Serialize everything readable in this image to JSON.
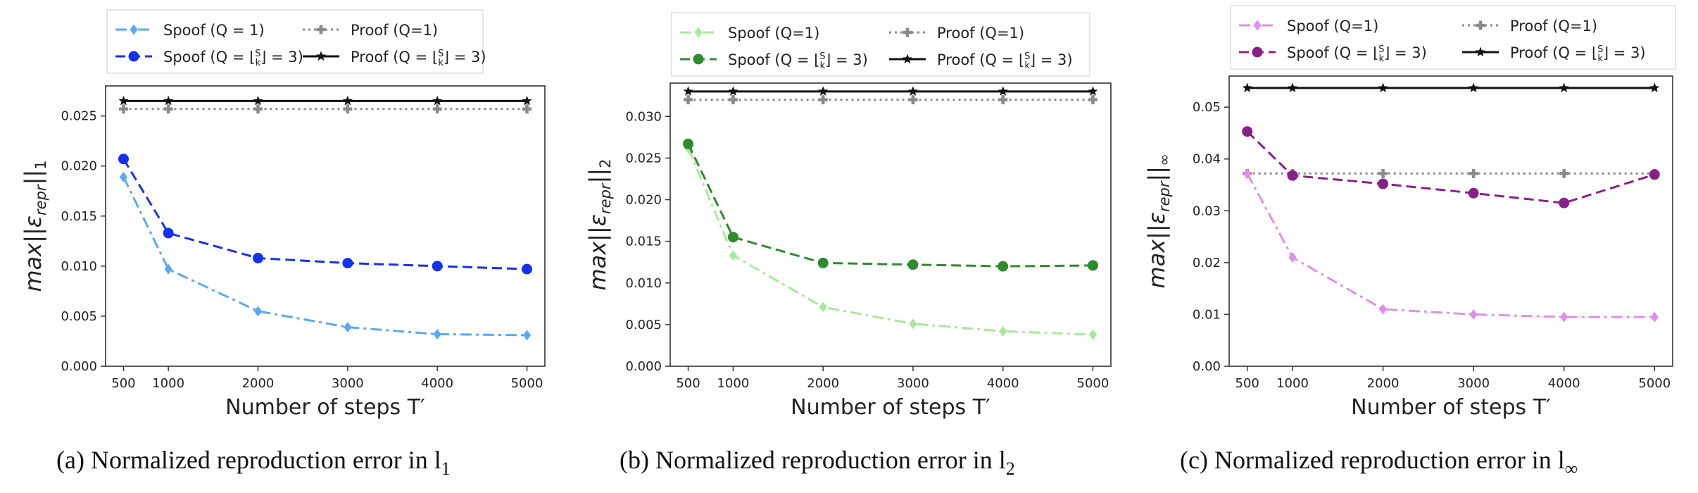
{
  "chart_data": [
    {
      "type": "line",
      "caption": "(a) Normalized reproduction error in l",
      "caption_sub": "1",
      "xlabel": "Number of steps T′",
      "ylabel_main": "max||ε",
      "ylabel_sub": "repr",
      "ylabel_tail": "||",
      "ylabel_idx": "1",
      "x": [
        500,
        1000,
        2000,
        3000,
        4000,
        5000
      ],
      "xticks": [
        "500",
        "1000",
        "2000",
        "3000",
        "4000",
        "5000"
      ],
      "ylim": [
        0,
        0.028
      ],
      "yticks": [
        0.0,
        0.005,
        0.01,
        0.015,
        0.02,
        0.025
      ],
      "ytick_labels": [
        "0.000",
        "0.005",
        "0.010",
        "0.015",
        "0.020",
        "0.025"
      ],
      "legend_position": "top (outside plot, 2 columns)",
      "series": [
        {
          "name": "Spoof (Q = 1)",
          "color": "#5aa9f0",
          "style": "dashdot",
          "marker": "diamond",
          "values": [
            0.0189,
            0.0097,
            0.0055,
            0.0039,
            0.0032,
            0.0031
          ]
        },
        {
          "name": "Spoof (Q = ⌊S/k⌋ = 3)",
          "color": "#1531f0",
          "style": "dashed",
          "marker": "circle",
          "values": [
            0.0207,
            0.0133,
            0.0108,
            0.0103,
            0.01,
            0.0097
          ]
        },
        {
          "name": "Proof (Q=1)",
          "color": "#8a8a8a",
          "style": "dotted",
          "marker": "plus",
          "values": [
            0.0257,
            0.0257,
            0.0257,
            0.0257,
            0.0257,
            0.0257
          ]
        },
        {
          "name": "Proof (Q = ⌊S/k⌋ = 3)",
          "color": "#111111",
          "style": "solid",
          "marker": "star",
          "values": [
            0.0265,
            0.0265,
            0.0265,
            0.0265,
            0.0265,
            0.0265
          ]
        }
      ]
    },
    {
      "type": "line",
      "caption": "(b) Normalized reproduction error in l",
      "caption_sub": "2",
      "xlabel": "Number of steps T′",
      "ylabel_main": "max||ε",
      "ylabel_sub": "repr",
      "ylabel_tail": "||",
      "ylabel_idx": "2",
      "x": [
        500,
        1000,
        2000,
        3000,
        4000,
        5000
      ],
      "xticks": [
        "500",
        "1000",
        "2000",
        "3000",
        "4000",
        "5000"
      ],
      "ylim": [
        0,
        0.034
      ],
      "yticks": [
        0.0,
        0.005,
        0.01,
        0.015,
        0.02,
        0.025,
        0.03
      ],
      "ytick_labels": [
        "0.000",
        "0.005",
        "0.010",
        "0.015",
        "0.020",
        "0.025",
        "0.030"
      ],
      "legend_position": "top (outside plot, 2 columns)",
      "series": [
        {
          "name": "Spoof (Q=1)",
          "color": "#a8e89a",
          "style": "dashdot",
          "marker": "diamond",
          "values": [
            0.0262,
            0.0133,
            0.0071,
            0.0051,
            0.0042,
            0.0038
          ]
        },
        {
          "name": "Spoof (Q = ⌊S/k⌋ = 3)",
          "color": "#2e8b2e",
          "style": "dashed",
          "marker": "circle",
          "values": [
            0.0267,
            0.0155,
            0.0124,
            0.0122,
            0.012,
            0.0121
          ]
        },
        {
          "name": "Proof (Q=1)",
          "color": "#8a8a8a",
          "style": "dotted",
          "marker": "plus",
          "values": [
            0.032,
            0.032,
            0.032,
            0.032,
            0.032,
            0.032
          ]
        },
        {
          "name": "Proof (Q = ⌊S/k⌋ = 3)",
          "color": "#111111",
          "style": "solid",
          "marker": "star",
          "values": [
            0.033,
            0.033,
            0.033,
            0.033,
            0.033,
            0.033
          ]
        }
      ]
    },
    {
      "type": "line",
      "caption": "(c) Normalized reproduction error in l",
      "caption_sub": "∞",
      "xlabel": "Number of steps T′",
      "ylabel_main": "max||ε",
      "ylabel_sub": "repr",
      "ylabel_tail": "||",
      "ylabel_idx": "∞",
      "x": [
        500,
        1000,
        2000,
        3000,
        4000,
        5000
      ],
      "xticks": [
        "500",
        "1000",
        "2000",
        "3000",
        "4000",
        "5000"
      ],
      "ylim": [
        0,
        0.056
      ],
      "yticks": [
        0.0,
        0.01,
        0.02,
        0.03,
        0.04,
        0.05
      ],
      "ytick_labels": [
        "0.00",
        "0.01",
        "0.02",
        "0.03",
        "0.04",
        "0.05"
      ],
      "legend_position": "top (outside plot, 2 columns)",
      "series": [
        {
          "name": "Spoof (Q=1)",
          "color": "#e08ee8",
          "style": "dashdot",
          "marker": "diamond",
          "values": [
            0.0372,
            0.021,
            0.011,
            0.01,
            0.0095,
            0.0095
          ]
        },
        {
          "name": "Spoof (Q = ⌊S/k⌋ = 3)",
          "color": "#8a1f8a",
          "style": "dashed",
          "marker": "circle",
          "values": [
            0.0453,
            0.0368,
            0.0352,
            0.0334,
            0.0315,
            0.037
          ]
        },
        {
          "name": "Proof (Q=1)",
          "color": "#8a8a8a",
          "style": "dotted",
          "marker": "plus",
          "values": [
            0.0372,
            0.0372,
            0.0372,
            0.0372,
            0.0372,
            0.0372
          ]
        },
        {
          "name": "Proof (Q = ⌊S/k⌋ = 3)",
          "color": "#111111",
          "style": "solid",
          "marker": "star",
          "values": [
            0.0537,
            0.0537,
            0.0537,
            0.0537,
            0.0537,
            0.0537
          ]
        }
      ]
    }
  ]
}
